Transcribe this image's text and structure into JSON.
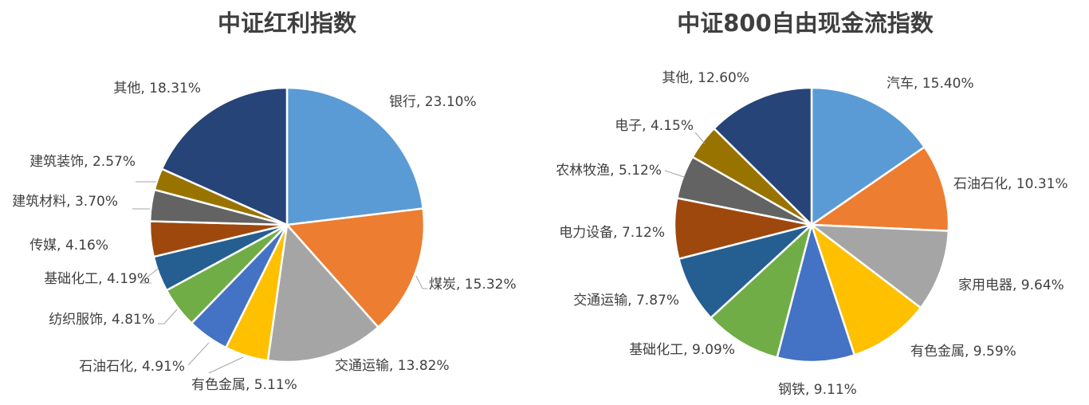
{
  "chart_data": [
    {
      "type": "pie",
      "title": "中证红利指数",
      "slices": [
        {
          "name": "银行",
          "value": 23.1,
          "label": "银行, 23.10%",
          "color": "#5b9bd5"
        },
        {
          "name": "煤炭",
          "value": 15.32,
          "label": "煤炭, 15.32%",
          "color": "#ed7d31"
        },
        {
          "name": "交通运输",
          "value": 13.82,
          "label": "交通运输, 13.82%",
          "color": "#a5a5a5"
        },
        {
          "name": "有色金属",
          "value": 5.11,
          "label": "有色金属, 5.11%",
          "color": "#ffc000"
        },
        {
          "name": "石油石化",
          "value": 4.91,
          "label": "石油石化, 4.91%",
          "color": "#4472c4"
        },
        {
          "name": "纺织服饰",
          "value": 4.81,
          "label": "纺织服饰, 4.81%",
          "color": "#70ad47"
        },
        {
          "name": "基础化工",
          "value": 4.19,
          "label": "基础化工, 4.19%",
          "color": "#255e91"
        },
        {
          "name": "传媒",
          "value": 4.16,
          "label": "传媒, 4.16%",
          "color": "#9e480e"
        },
        {
          "name": "建筑材料",
          "value": 3.7,
          "label": "建筑材料, 3.70%",
          "color": "#636363"
        },
        {
          "name": "建筑装饰",
          "value": 2.57,
          "label": "建筑装饰, 2.57%",
          "color": "#997300"
        },
        {
          "name": "其他",
          "value": 18.31,
          "label": "其他, 18.31%",
          "color": "#264478"
        }
      ]
    },
    {
      "type": "pie",
      "title": "中证800自由现金流指数",
      "slices": [
        {
          "name": "汽车",
          "value": 15.4,
          "label": "汽车, 15.40%",
          "color": "#5b9bd5"
        },
        {
          "name": "石油石化",
          "value": 10.31,
          "label": "石油石化, 10.31%",
          "color": "#ed7d31"
        },
        {
          "name": "家用电器",
          "value": 9.64,
          "label": "家用电器, 9.64%",
          "color": "#a5a5a5"
        },
        {
          "name": "有色金属",
          "value": 9.59,
          "label": "有色金属, 9.59%",
          "color": "#ffc000"
        },
        {
          "name": "钢铁",
          "value": 9.11,
          "label": "钢铁, 9.11%",
          "color": "#4472c4"
        },
        {
          "name": "基础化工",
          "value": 9.09,
          "label": "基础化工, 9.09%",
          "color": "#70ad47"
        },
        {
          "name": "交通运输",
          "value": 7.87,
          "label": "交通运输, 7.87%",
          "color": "#255e91"
        },
        {
          "name": "电力设备",
          "value": 7.12,
          "label": "电力设备, 7.12%",
          "color": "#9e480e"
        },
        {
          "name": "农林牧渔",
          "value": 5.12,
          "label": "农林牧渔, 5.12%",
          "color": "#636363"
        },
        {
          "name": "电子",
          "value": 4.15,
          "label": "电子, 4.15%",
          "color": "#997300"
        },
        {
          "name": "其他",
          "value": 12.6,
          "label": "其他, 12.60%",
          "color": "#264478"
        }
      ]
    }
  ]
}
